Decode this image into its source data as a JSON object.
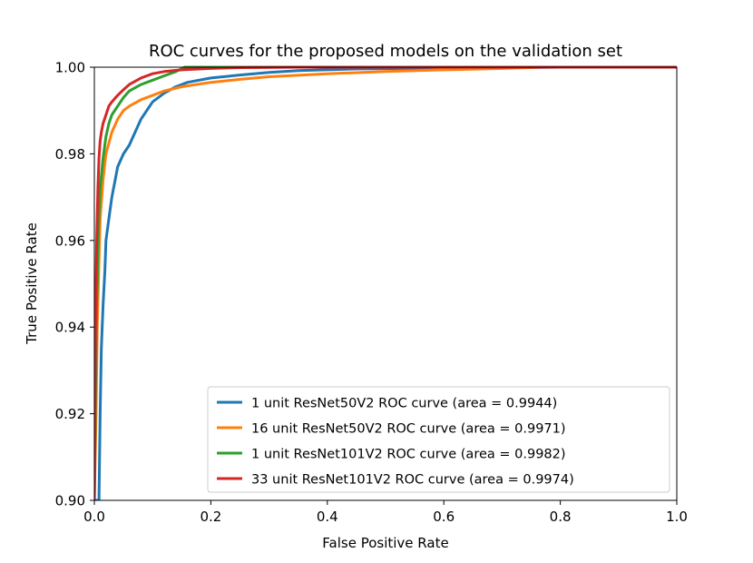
{
  "chart_data": {
    "type": "line",
    "title": "ROC curves for the proposed models on the validation set",
    "xlabel": "False Positive Rate",
    "ylabel": "True Positive Rate",
    "xlim": [
      0.0,
      1.0
    ],
    "ylim": [
      0.9,
      1.0
    ],
    "xticks": [
      0.0,
      0.2,
      0.4,
      0.6,
      0.8,
      1.0
    ],
    "xtick_labels": [
      "0.0",
      "0.2",
      "0.4",
      "0.6",
      "0.8",
      "1.0"
    ],
    "yticks": [
      0.9,
      0.92,
      0.94,
      0.96,
      0.98,
      1.0
    ],
    "ytick_labels": [
      "0.90",
      "0.92",
      "0.94",
      "0.96",
      "0.98",
      "1.00"
    ],
    "grid": false,
    "legend_position": "lower-right",
    "series": [
      {
        "name": "1 unit ResNet50V2 ROC curve (area = 0.9944)",
        "color": "#1f77b4",
        "x": [
          0.0,
          0.008,
          0.01,
          0.012,
          0.015,
          0.018,
          0.02,
          0.025,
          0.03,
          0.04,
          0.05,
          0.06,
          0.07,
          0.08,
          0.09,
          0.1,
          0.12,
          0.14,
          0.16,
          0.2,
          0.25,
          0.3,
          0.35,
          0.45,
          0.6,
          0.8,
          1.0
        ],
        "y": [
          0.9,
          0.9,
          0.92,
          0.935,
          0.945,
          0.953,
          0.96,
          0.965,
          0.97,
          0.977,
          0.98,
          0.982,
          0.985,
          0.988,
          0.99,
          0.992,
          0.994,
          0.9955,
          0.9965,
          0.9975,
          0.9982,
          0.9988,
          0.9992,
          0.9996,
          0.9998,
          1.0,
          1.0
        ]
      },
      {
        "name": "16 unit ResNet50V2 ROC curve (area = 0.9971)",
        "color": "#ff7f0e",
        "x": [
          0.0,
          0.003,
          0.005,
          0.008,
          0.01,
          0.015,
          0.02,
          0.03,
          0.04,
          0.05,
          0.06,
          0.08,
          0.1,
          0.12,
          0.15,
          0.2,
          0.25,
          0.3,
          0.4,
          0.5,
          0.6,
          0.7,
          0.77,
          1.0
        ],
        "y": [
          0.9,
          0.92,
          0.94,
          0.955,
          0.965,
          0.974,
          0.98,
          0.985,
          0.988,
          0.99,
          0.991,
          0.9925,
          0.9935,
          0.9945,
          0.9955,
          0.9965,
          0.9972,
          0.9978,
          0.9985,
          0.999,
          0.9994,
          0.9997,
          1.0,
          1.0
        ]
      },
      {
        "name": "1 unit ResNet101V2 ROC curve (area = 0.9982)",
        "color": "#2ca02c",
        "x": [
          0.0,
          0.002,
          0.004,
          0.006,
          0.008,
          0.01,
          0.015,
          0.02,
          0.025,
          0.03,
          0.04,
          0.05,
          0.06,
          0.08,
          0.1,
          0.12,
          0.14,
          0.155,
          1.0
        ],
        "y": [
          0.9,
          0.925,
          0.945,
          0.958,
          0.966,
          0.972,
          0.979,
          0.984,
          0.987,
          0.989,
          0.991,
          0.993,
          0.9945,
          0.996,
          0.997,
          0.998,
          0.999,
          1.0,
          1.0
        ]
      },
      {
        "name": "33 unit ResNet101V2 ROC curve (area = 0.9974)",
        "color": "#d62728",
        "x": [
          0.0,
          0.002,
          0.004,
          0.006,
          0.008,
          0.01,
          0.012,
          0.015,
          0.02,
          0.025,
          0.03,
          0.04,
          0.05,
          0.06,
          0.08,
          0.1,
          0.12,
          0.15,
          0.2,
          0.25,
          0.3,
          0.34,
          1.0
        ],
        "y": [
          0.9,
          0.94,
          0.96,
          0.972,
          0.979,
          0.983,
          0.985,
          0.987,
          0.989,
          0.991,
          0.992,
          0.9935,
          0.9948,
          0.996,
          0.9975,
          0.9985,
          0.999,
          0.9994,
          0.9997,
          0.9999,
          0.99995,
          1.0,
          1.0
        ]
      }
    ]
  }
}
